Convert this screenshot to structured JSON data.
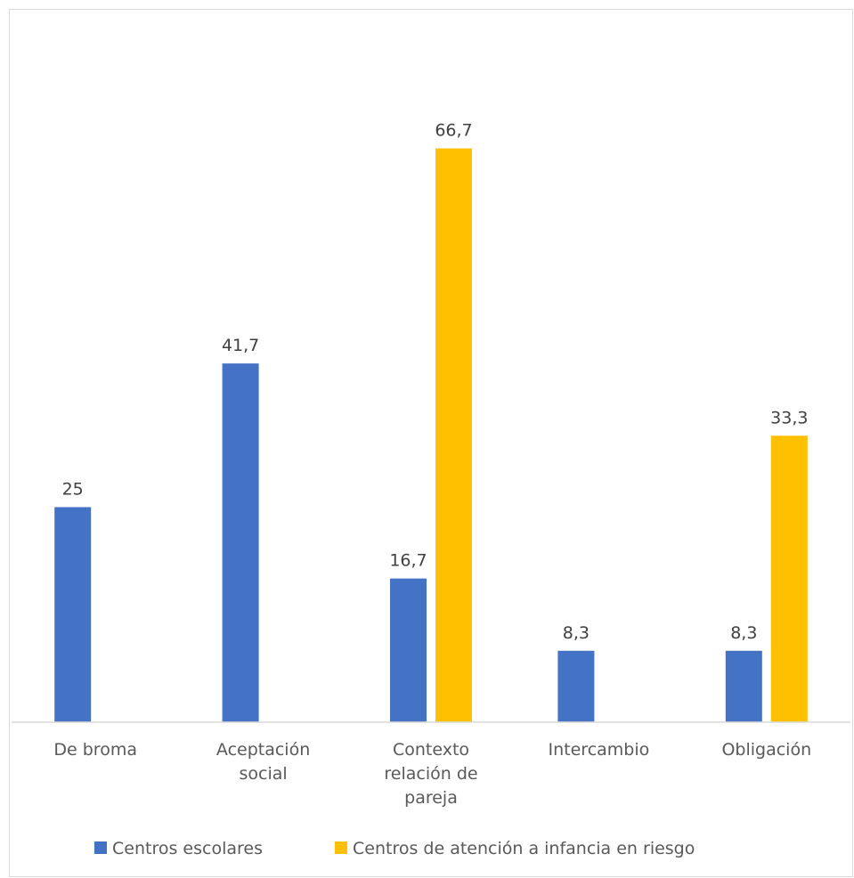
{
  "chart_data": {
    "type": "bar",
    "title": "",
    "xlabel": "",
    "ylabel": "",
    "ylim": [
      0,
      80
    ],
    "grid": false,
    "legend": "bottom",
    "categories": [
      [
        "De broma"
      ],
      [
        "Aceptación",
        "social"
      ],
      [
        "Contexto",
        "relación de",
        "pareja"
      ],
      [
        "Intercambio"
      ],
      [
        "Obligación"
      ]
    ],
    "series": [
      {
        "name": "Centros escolares",
        "color": "#4472C4",
        "values": [
          25,
          41.7,
          16.7,
          8.3,
          8.3
        ],
        "labels": [
          "25",
          "41,7",
          "16,7",
          "8,3",
          "8,3"
        ]
      },
      {
        "name": "Centros de atención a infancia en riesgo",
        "color": "#FFC000",
        "values": [
          null,
          null,
          66.7,
          null,
          33.3
        ],
        "labels": [
          "",
          "",
          "66,7",
          "",
          "33,3"
        ]
      }
    ]
  }
}
